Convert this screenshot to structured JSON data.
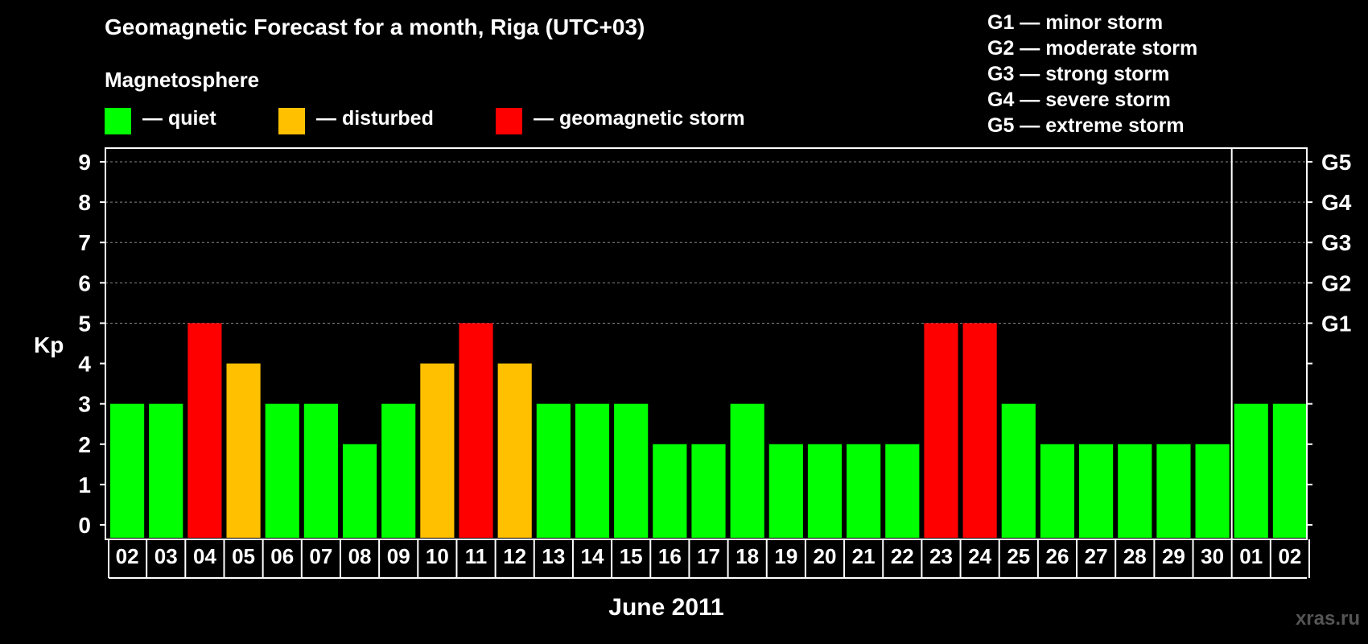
{
  "header": {
    "title": "Geomagnetic Forecast for a month, Riga (UTC+03)",
    "magnetosphere_label": "Magnetosphere"
  },
  "legend": [
    {
      "label": "— quiet",
      "color": "#00FF00"
    },
    {
      "label": "— disturbed",
      "color": "#FFC000"
    },
    {
      "label": "— geomagnetic storm",
      "color": "#FF0000"
    }
  ],
  "storm_levels": [
    "G1 — minor storm",
    "G2 — moderate storm",
    "G3 — strong storm",
    "G4 — severe storm",
    "G5 — extreme storm"
  ],
  "watermark": "xras.ru",
  "chart_data": {
    "type": "bar",
    "ylabel": "Kp",
    "xlabel": "June 2011",
    "ylim": [
      0,
      9
    ],
    "yticks": [
      "0",
      "1",
      "2",
      "3",
      "4",
      "5",
      "6",
      "7",
      "8",
      "9"
    ],
    "right_axis_labels": [
      {
        "kp": 5,
        "label": "G1"
      },
      {
        "kp": 6,
        "label": "G2"
      },
      {
        "kp": 7,
        "label": "G3"
      },
      {
        "kp": 8,
        "label": "G4"
      },
      {
        "kp": 9,
        "label": "G5"
      }
    ],
    "categories": [
      "02",
      "03",
      "04",
      "05",
      "06",
      "07",
      "08",
      "09",
      "10",
      "11",
      "12",
      "13",
      "14",
      "15",
      "16",
      "17",
      "18",
      "19",
      "20",
      "21",
      "22",
      "23",
      "24",
      "25",
      "26",
      "27",
      "28",
      "29",
      "30",
      "01",
      "02"
    ],
    "values": [
      3,
      3,
      5,
      4,
      3,
      3,
      2,
      3,
      4,
      5,
      4,
      3,
      3,
      3,
      2,
      2,
      3,
      2,
      2,
      2,
      2,
      5,
      5,
      3,
      2,
      2,
      2,
      2,
      2,
      3,
      3
    ],
    "month_boundary_after_index": 28,
    "colors": {
      "quiet": "#00FF00",
      "disturbed": "#FFC000",
      "storm": "#FF0000"
    }
  }
}
